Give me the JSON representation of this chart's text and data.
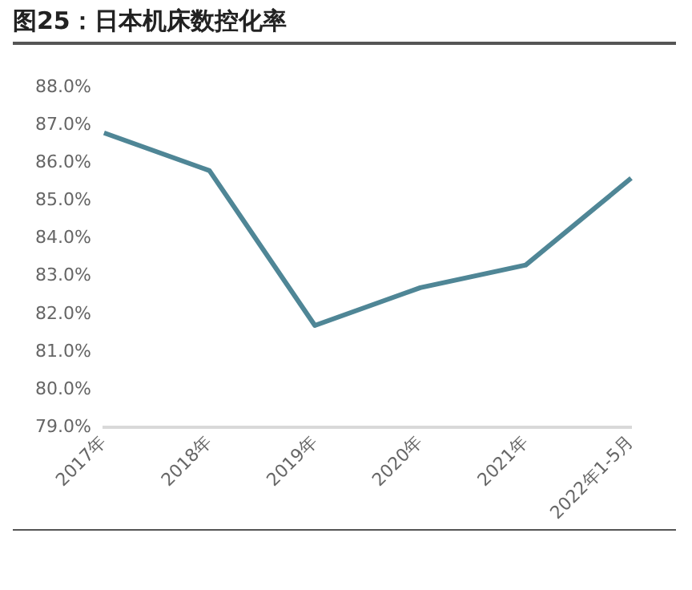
{
  "chart_data": {
    "type": "line",
    "title": "图25：日本机床数控化率",
    "categories": [
      "2017年",
      "2018年",
      "2019年",
      "2020年",
      "2021年",
      "2022年1-5月"
    ],
    "series": [
      {
        "color": "#4f8696",
        "values": [
          86.8,
          85.8,
          81.7,
          82.7,
          83.3,
          85.6
        ]
      }
    ],
    "ylim": [
      79,
      88
    ],
    "yticks": [
      {
        "value": 79,
        "label": "79.0%"
      },
      {
        "value": 80,
        "label": "80.0%"
      },
      {
        "value": 81,
        "label": "81.0%"
      },
      {
        "value": 82,
        "label": "82.0%"
      },
      {
        "value": 83,
        "label": "83.0%"
      },
      {
        "value": 84,
        "label": "84.0%"
      },
      {
        "value": 85,
        "label": "85.0%"
      },
      {
        "value": 86,
        "label": "86.0%"
      },
      {
        "value": 87,
        "label": "87.0%"
      },
      {
        "value": 88,
        "label": "88.0%"
      }
    ],
    "grid": false,
    "legend": false,
    "marker": "none",
    "line_style": "solid"
  }
}
